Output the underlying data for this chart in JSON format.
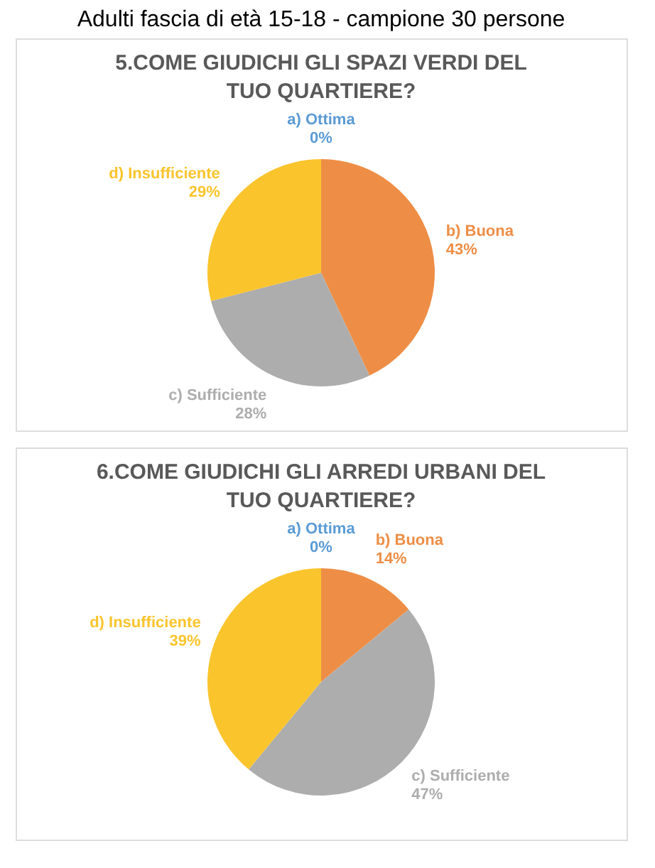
{
  "chart_data": [
    {
      "type": "pie",
      "title": "5.COME GIUDICHI GLI SPAZI VERDI DEL TUO QUARTIERE?",
      "annotations": [
        "Adulti fascia di età 15-18 - campione 30 persone"
      ],
      "categories": [
        "a) Ottima",
        "b) Buona",
        "c) Sufficiente",
        "d) Insufficiente"
      ],
      "values": [
        0,
        43,
        28,
        29
      ],
      "value_labels": [
        "0%",
        "43%",
        "28%",
        "29%"
      ],
      "colors": [
        "#5b9bd5",
        "#ee8e46",
        "#adadad",
        "#fac42d"
      ]
    },
    {
      "type": "pie",
      "title": "6.COME GIUDICHI GLI ARREDI URBANI DEL TUO QUARTIERE?",
      "categories": [
        "a) Ottima",
        "b) Buona",
        "c) Sufficiente",
        "d) Insufficiente"
      ],
      "values": [
        0,
        14,
        47,
        39
      ],
      "value_labels": [
        "0%",
        "14%",
        "47%",
        "39%"
      ],
      "colors": [
        "#5b9bd5",
        "#ee8e46",
        "#adadad",
        "#fac42d"
      ]
    }
  ]
}
